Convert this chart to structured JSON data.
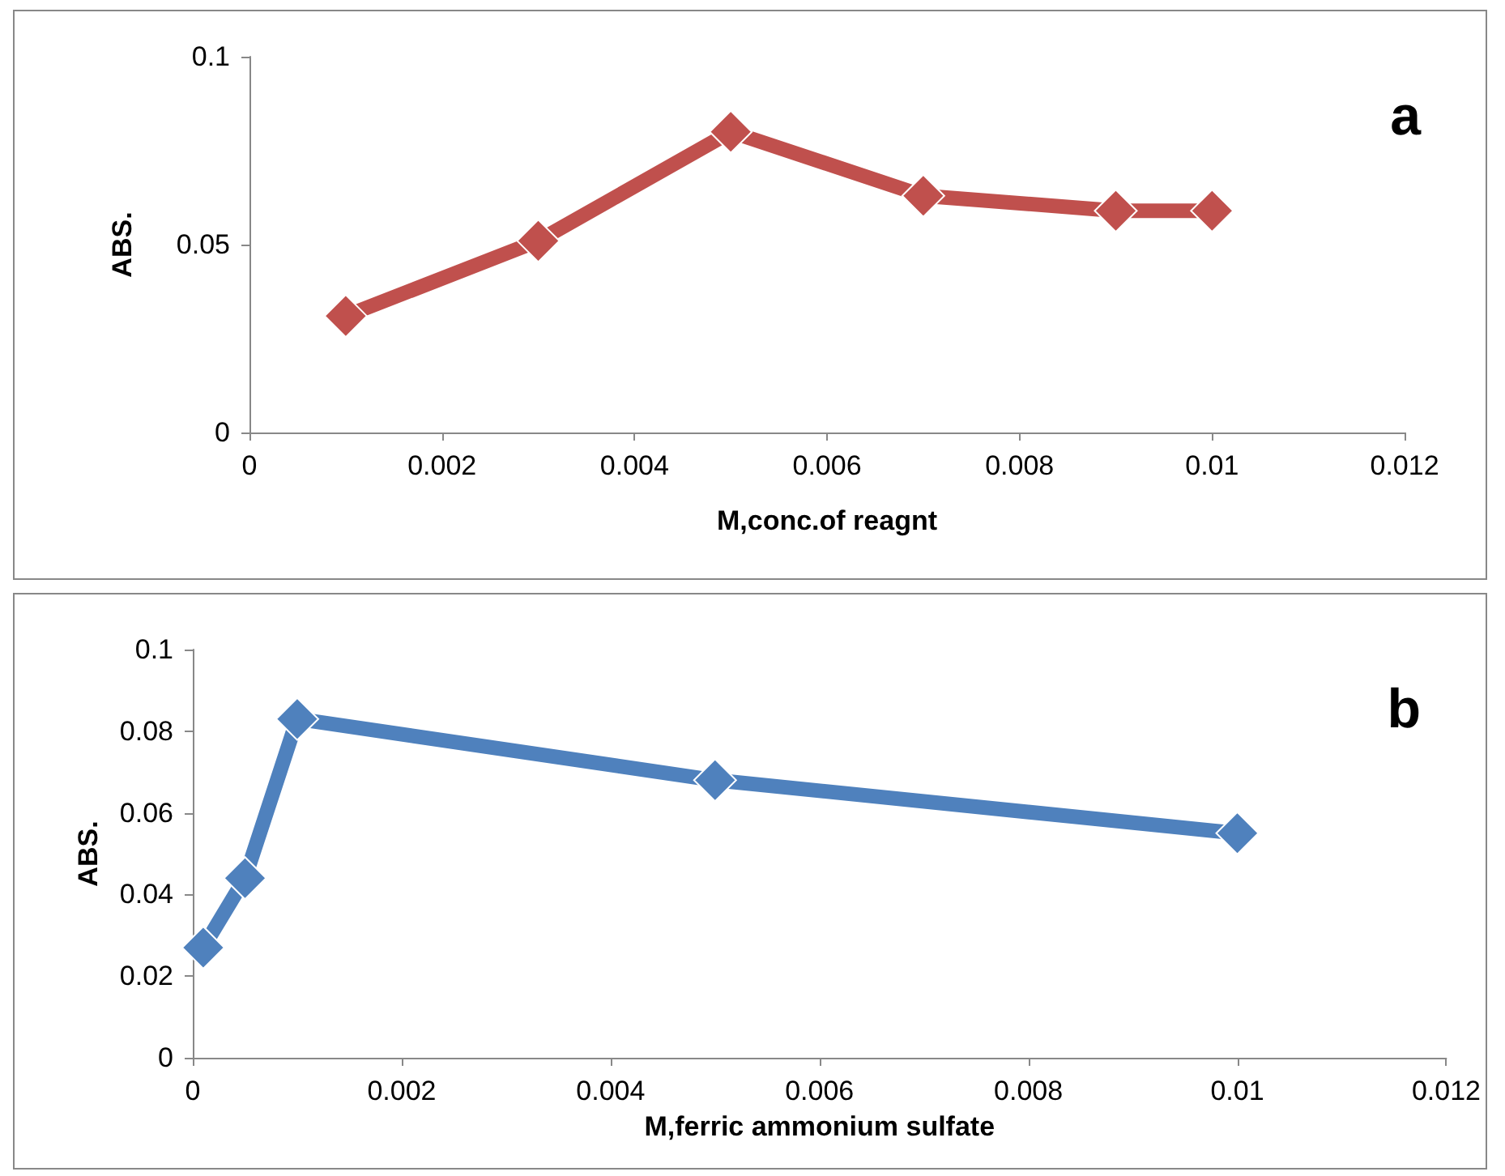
{
  "chart_data": [
    {
      "type": "line",
      "xlabel": "M,conc.of reagnt",
      "ylabel": "ABS.",
      "annotations": [
        "a"
      ],
      "x": [
        0.001,
        0.003,
        0.005,
        0.007,
        0.009,
        0.01
      ],
      "series": [
        {
          "color": "#c0504d",
          "values": [
            0.031,
            0.051,
            0.08,
            0.063,
            0.059,
            0.059
          ]
        }
      ],
      "xlim": [
        0,
        0.012
      ],
      "xticks": [
        0,
        0.002,
        0.004,
        0.006,
        0.008,
        0.01,
        0.012
      ],
      "ylim": [
        0,
        0.1
      ],
      "yticks": [
        0,
        0.05,
        0.1
      ],
      "marker": "diamond",
      "line_style": "solid",
      "grid": false
    },
    {
      "type": "line",
      "xlabel": "M,ferric ammonium sulfate",
      "ylabel": "ABS.",
      "annotations": [
        "b"
      ],
      "x": [
        0.0001,
        0.0005,
        0.001,
        0.005,
        0.01
      ],
      "series": [
        {
          "color": "#4f81bd",
          "values": [
            0.027,
            0.044,
            0.083,
            0.068,
            0.055
          ]
        }
      ],
      "xlim": [
        0,
        0.012
      ],
      "xticks": [
        0,
        0.002,
        0.004,
        0.006,
        0.008,
        0.01,
        0.012
      ],
      "ylim": [
        0,
        0.1
      ],
      "yticks": [
        0,
        0.02,
        0.04,
        0.06,
        0.08,
        0.1
      ],
      "marker": "diamond",
      "line_style": "solid",
      "grid": false
    }
  ]
}
